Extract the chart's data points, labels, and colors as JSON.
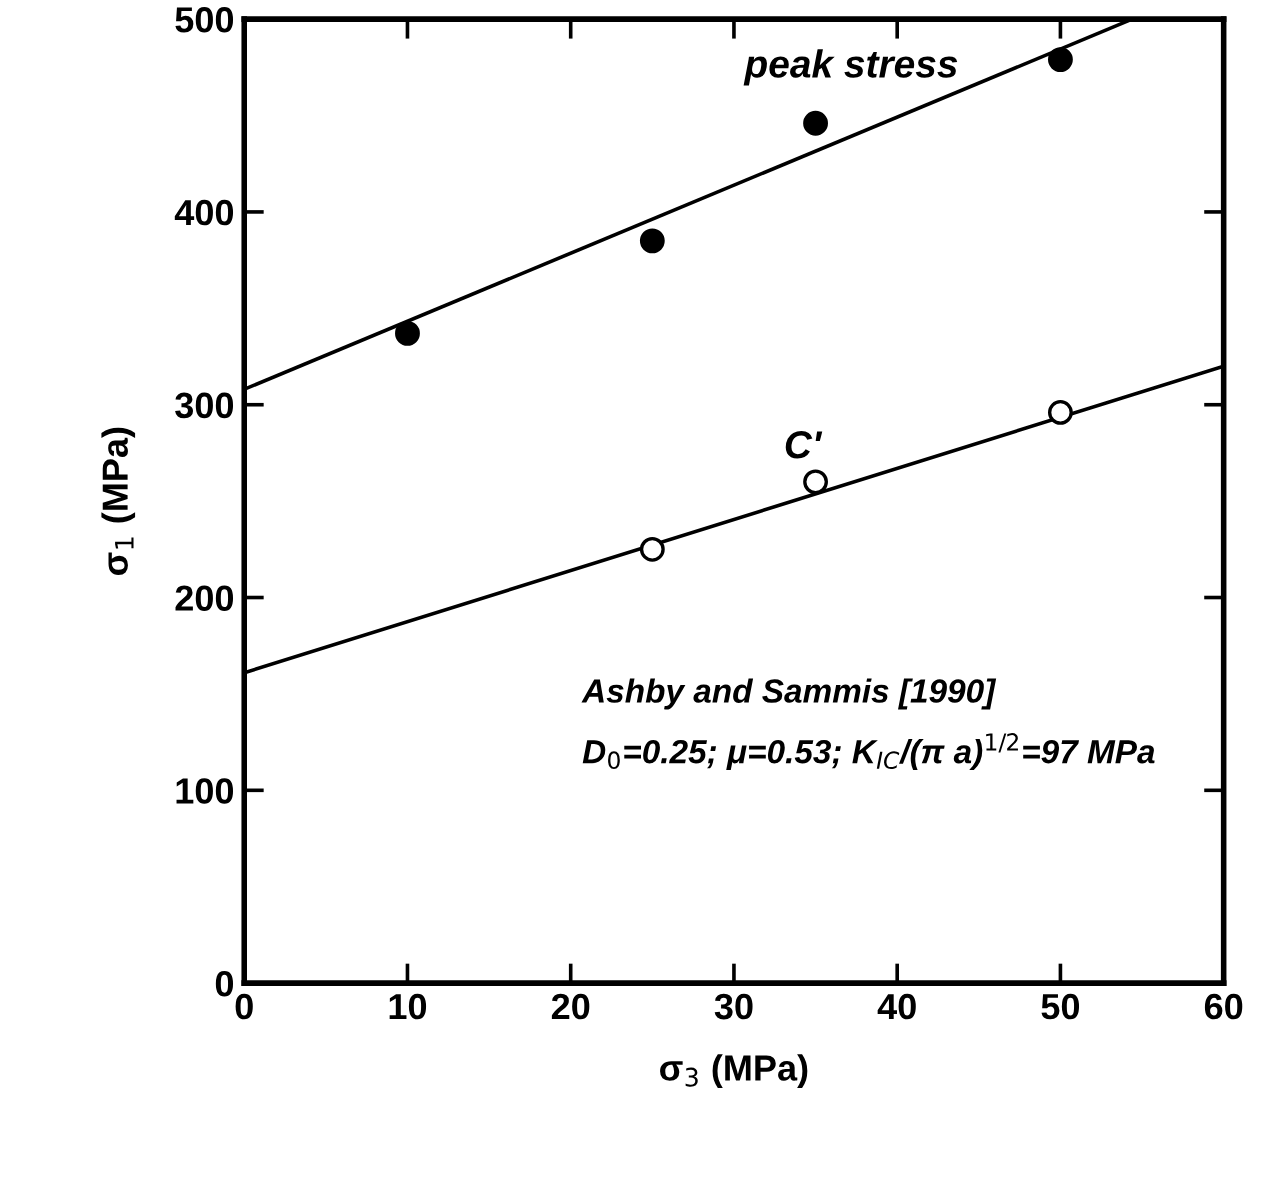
{
  "chart_data": {
    "type": "scatter",
    "xlabel": "σ$_{3}$ (MPa)",
    "ylabel": "σ$_{1}$ (MPa)",
    "xlim": [
      0,
      60
    ],
    "ylim": [
      0,
      500
    ],
    "xticks": [
      0,
      10,
      20,
      30,
      40,
      50,
      60
    ],
    "yticks": [
      0,
      100,
      200,
      300,
      400,
      500
    ],
    "grid": false,
    "legend": false,
    "series": [
      {
        "x": [
          10,
          25,
          35,
          50
        ],
        "values": [
          337,
          385,
          446,
          479
        ],
        "color": "#000000",
        "marker": "circle"
      },
      {
        "type": "line",
        "x": [
          0,
          54.4
        ],
        "values": [
          308,
          500
        ],
        "color": "#000000",
        "line_style": "solid",
        "marker": "none"
      },
      {
        "x": [
          25,
          35,
          50
        ],
        "values": [
          225,
          260,
          296
        ],
        "color": "#ffffff",
        "marker": "circle"
      },
      {
        "type": "line",
        "x": [
          0,
          60
        ],
        "values": [
          161,
          320
        ],
        "color": "#000000",
        "line_style": "solid",
        "marker": "none"
      }
    ],
    "annotations": [
      "peak stress",
      "C'",
      "Ashby and Sammis [1990]",
      "D$_{0}$=0.25; μ=0.53; K$_{IC}$/(π a)$^{1/2}$=97 MPa"
    ]
  }
}
